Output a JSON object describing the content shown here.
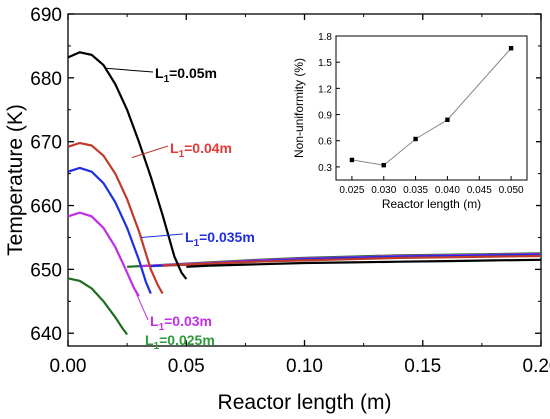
{
  "chart_data": [
    {
      "type": "line",
      "xlabel": "Reactor length (m)",
      "ylabel": "Temperature (K)",
      "xlim": [
        0.0,
        0.2
      ],
      "ylim": [
        638,
        690
      ],
      "xticks": [
        "0.00",
        "0.05",
        "0.10",
        "0.15",
        "0.20"
      ],
      "yticks": [
        "640",
        "650",
        "660",
        "670",
        "680",
        "690"
      ],
      "grid": false,
      "series": [
        {
          "name": "L1=0.05m",
          "label_main": "L",
          "label_sub": "1",
          "label_rest": "=0.05m",
          "color": "#000000",
          "label_color": "#000000",
          "x": [
            0.0,
            0.005,
            0.01,
            0.015,
            0.02,
            0.025,
            0.03,
            0.035,
            0.04,
            0.045,
            0.048,
            0.05
          ],
          "y": [
            683.2,
            684.0,
            683.6,
            682.0,
            679.0,
            675.0,
            670.0,
            664.5,
            658.5,
            652.0,
            649.5,
            648.5
          ],
          "tail_x": [
            0.05,
            0.06,
            0.08,
            0.1,
            0.12,
            0.14,
            0.16,
            0.18,
            0.2
          ],
          "tail_y": [
            650.4,
            650.6,
            650.8,
            651.0,
            651.1,
            651.2,
            651.3,
            651.4,
            651.5
          ]
        },
        {
          "name": "L1=0.04m",
          "label_main": "L",
          "label_sub": "1",
          "label_rest": "=0.04m",
          "color": "#c0392b",
          "label_color": "#e53935",
          "x": [
            0.0,
            0.005,
            0.01,
            0.015,
            0.02,
            0.025,
            0.03,
            0.035,
            0.038,
            0.04
          ],
          "y": [
            669.2,
            669.8,
            669.4,
            667.8,
            665.0,
            661.0,
            656.0,
            650.0,
            647.5,
            646.2
          ],
          "tail_x": [
            0.04,
            0.06,
            0.08,
            0.1,
            0.12,
            0.14,
            0.16,
            0.18,
            0.2
          ],
          "tail_y": [
            650.6,
            650.9,
            651.2,
            651.4,
            651.6,
            651.8,
            651.9,
            652.0,
            652.1
          ]
        },
        {
          "name": "L1=0.035m",
          "label_main": "L",
          "label_sub": "1",
          "label_rest": "=0.035m",
          "color": "#1d2fe0",
          "label_color": "#1d2fe0",
          "x": [
            0.0,
            0.005,
            0.01,
            0.015,
            0.02,
            0.025,
            0.03,
            0.033,
            0.035
          ],
          "y": [
            665.3,
            665.9,
            665.3,
            663.5,
            660.5,
            656.5,
            651.5,
            648.0,
            646.2
          ],
          "tail_x": [
            0.035,
            0.06,
            0.08,
            0.1,
            0.12,
            0.14,
            0.16,
            0.18,
            0.2
          ],
          "tail_y": [
            650.5,
            650.9,
            651.3,
            651.6,
            651.8,
            652.0,
            652.1,
            652.2,
            652.3
          ]
        },
        {
          "name": "L1=0.03m",
          "label_main": "L",
          "label_sub": "1",
          "label_rest": "=0.03m",
          "color": "#c22ee6",
          "label_color": "#c22ee6",
          "x": [
            0.0,
            0.005,
            0.01,
            0.015,
            0.02,
            0.025,
            0.028,
            0.03
          ],
          "y": [
            658.3,
            658.9,
            658.3,
            656.5,
            653.5,
            649.5,
            647.0,
            645.8
          ],
          "tail_x": [
            0.03,
            0.06,
            0.08,
            0.1,
            0.12,
            0.14,
            0.16,
            0.18,
            0.2
          ],
          "tail_y": [
            650.5,
            651.0,
            651.4,
            651.7,
            651.9,
            652.1,
            652.2,
            652.3,
            652.4
          ]
        },
        {
          "name": "L1=0.025m",
          "label_main": "L",
          "label_sub": "1",
          "label_rest": "=0.025m",
          "color": "#1e6e1e",
          "label_color": "#2e9a3a",
          "x": [
            0.0,
            0.005,
            0.01,
            0.015,
            0.02,
            0.023,
            0.025
          ],
          "y": [
            648.6,
            648.2,
            647.0,
            645.0,
            642.5,
            640.8,
            639.8
          ],
          "tail_x": [
            0.025,
            0.06,
            0.08,
            0.1,
            0.12,
            0.14,
            0.16,
            0.18,
            0.2
          ],
          "tail_y": [
            650.4,
            651.1,
            651.5,
            651.8,
            652.0,
            652.2,
            652.3,
            652.4,
            652.5
          ]
        }
      ]
    },
    {
      "type": "line",
      "xlabel": "Reactor length (m)",
      "ylabel": "Non-uniformity (%)",
      "xlim": [
        0.0225,
        0.0525
      ],
      "ylim": [
        0.15,
        1.8
      ],
      "xticks": [
        "0.025",
        "0.030",
        "0.035",
        "0.040",
        "0.045",
        "0.050"
      ],
      "yticks": [
        "0.3",
        "0.6",
        "0.9",
        "1.2",
        "1.5",
        "1.8"
      ],
      "grid": false,
      "x": [
        0.025,
        0.03,
        0.035,
        0.04,
        0.05
      ],
      "y": [
        0.38,
        0.32,
        0.62,
        0.84,
        1.66
      ]
    }
  ]
}
